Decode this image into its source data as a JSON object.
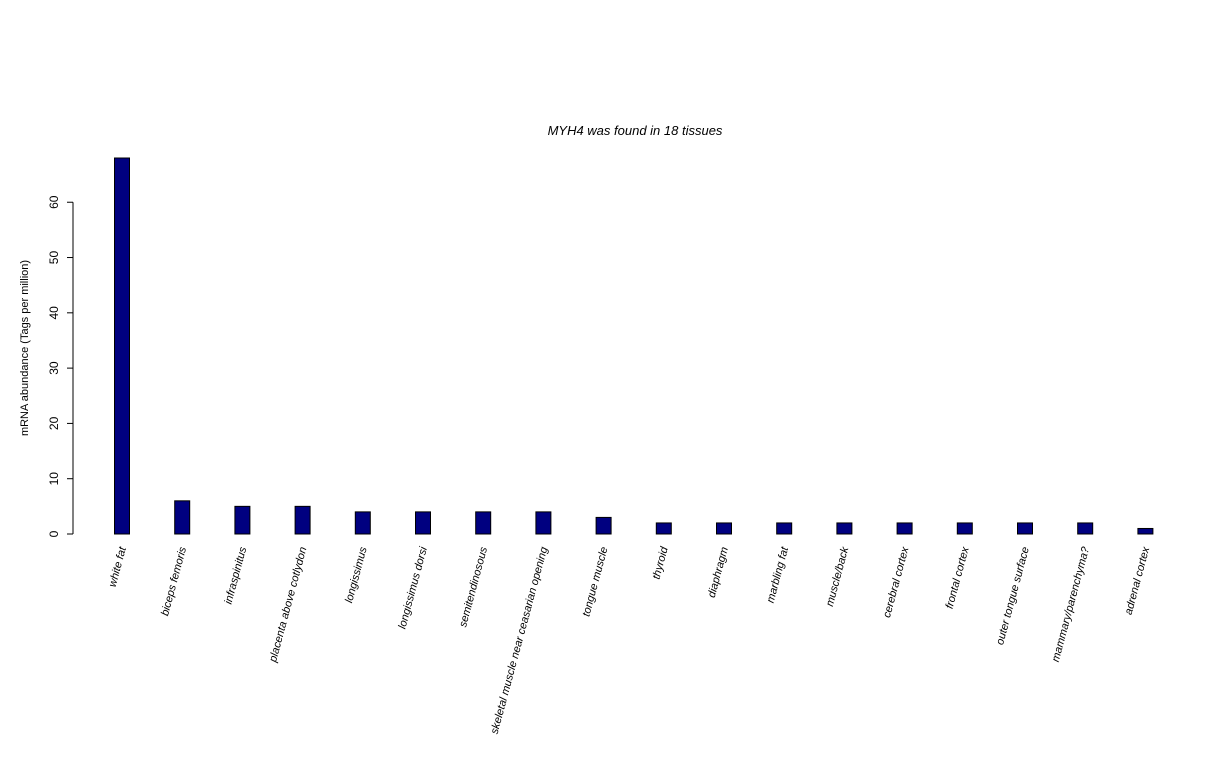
{
  "chart_data": {
    "type": "bar",
    "title": "MYH4  was found in  18  tissues",
    "xlabel": "",
    "ylabel": "mRNA abundance (Tags per million)",
    "ylim": [
      0,
      68
    ],
    "yticks": [
      0,
      10,
      20,
      30,
      40,
      50,
      60
    ],
    "grid": false,
    "bar_color": "#000080",
    "categories": [
      "white fat",
      "biceps femoris",
      "infraspinitus",
      "placenta above cotlydon",
      "longissimus",
      "longissimus dorsi",
      "semitendinosous",
      "skeletal muscle near ceasarian opening",
      "tongue muscle",
      "thyroid",
      "diaphragm",
      "marbling fat",
      "muscle/back",
      "cerebral cortex",
      "frontal cortex",
      "outer tongue surface",
      "mammary/parenchyma?",
      "adrenal cortex"
    ],
    "values": [
      68,
      6,
      5,
      5,
      4,
      4,
      4,
      4,
      3,
      2,
      2,
      2,
      2,
      2,
      2,
      2,
      2,
      1
    ]
  }
}
